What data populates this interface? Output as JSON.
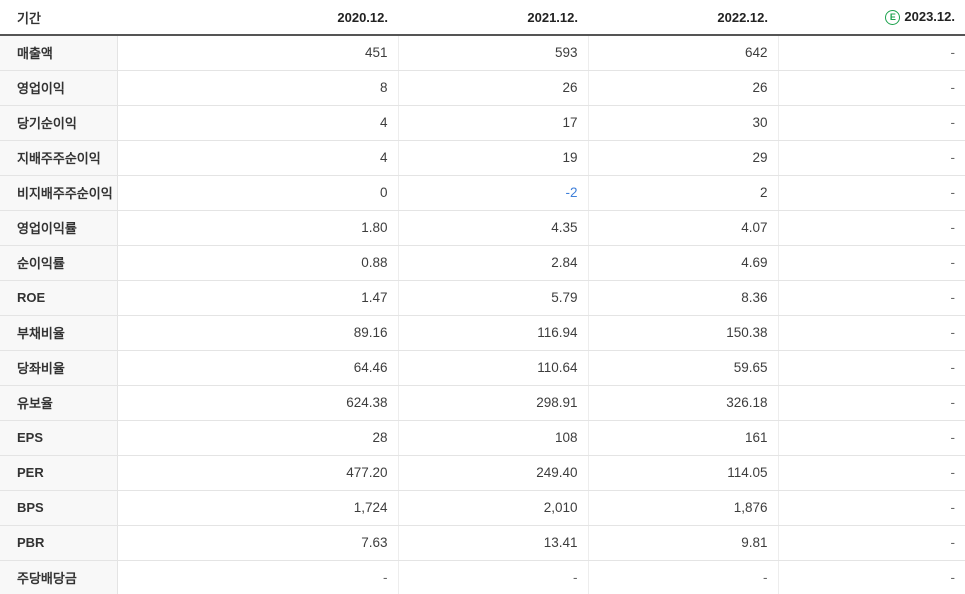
{
  "table": {
    "header": {
      "period_label": "기간",
      "years": [
        "2020.12.",
        "2021.12.",
        "2022.12.",
        "2023.12."
      ],
      "estimate_marker": {
        "letter": "E",
        "applies_to_year": "2023.12.",
        "color": "#1ca24d"
      }
    },
    "rows": [
      {
        "label": "매출액",
        "values": [
          "451",
          "593",
          "642",
          "-"
        ]
      },
      {
        "label": "영업이익",
        "values": [
          "8",
          "26",
          "26",
          "-"
        ]
      },
      {
        "label": "당기순이익",
        "values": [
          "4",
          "17",
          "30",
          "-"
        ]
      },
      {
        "label": "지배주주순이익",
        "values": [
          "4",
          "19",
          "29",
          "-"
        ]
      },
      {
        "label": "비지배주주순이익",
        "values": [
          "0",
          "-2",
          "2",
          "-"
        ]
      },
      {
        "label": "영업이익률",
        "values": [
          "1.80",
          "4.35",
          "4.07",
          "-"
        ]
      },
      {
        "label": "순이익률",
        "values": [
          "0.88",
          "2.84",
          "4.69",
          "-"
        ]
      },
      {
        "label": "ROE",
        "values": [
          "1.47",
          "5.79",
          "8.36",
          "-"
        ]
      },
      {
        "label": "부채비율",
        "values": [
          "89.16",
          "116.94",
          "150.38",
          "-"
        ]
      },
      {
        "label": "당좌비율",
        "values": [
          "64.46",
          "110.64",
          "59.65",
          "-"
        ]
      },
      {
        "label": "유보율",
        "values": [
          "624.38",
          "298.91",
          "326.18",
          "-"
        ]
      },
      {
        "label": "EPS",
        "values": [
          "28",
          "108",
          "161",
          "-"
        ]
      },
      {
        "label": "PER",
        "values": [
          "477.20",
          "249.40",
          "114.05",
          "-"
        ]
      },
      {
        "label": "BPS",
        "values": [
          "1,724",
          "2,010",
          "1,876",
          "-"
        ]
      },
      {
        "label": "PBR",
        "values": [
          "7.63",
          "13.41",
          "9.81",
          "-"
        ]
      },
      {
        "label": "주당배당금",
        "values": [
          "-",
          "-",
          "-",
          "-"
        ]
      }
    ],
    "colors": {
      "negative_value": "#3e7fd9",
      "estimate_green": "#1ca24d",
      "header_rule": "#555555",
      "row_rule": "#e4e4e4",
      "label_bg": "#f8f8f8"
    }
  }
}
